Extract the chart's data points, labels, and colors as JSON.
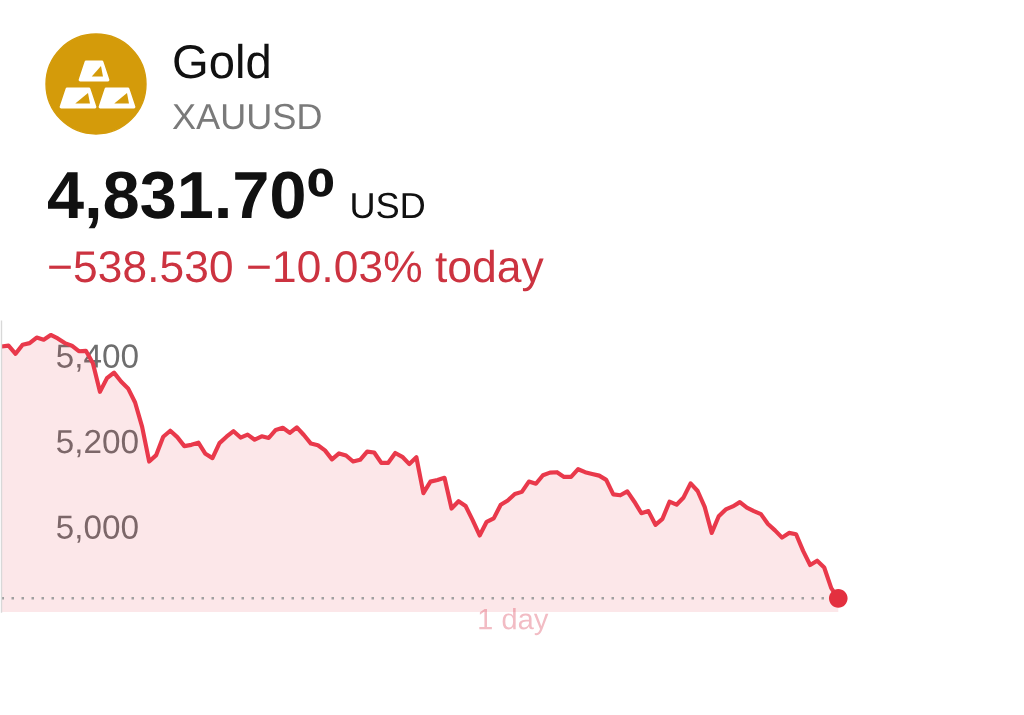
{
  "chart_data": {
    "type": "area",
    "title": "Gold",
    "subtitle": "XAUUSD",
    "xlabel": "1 day",
    "annotations": [
      "4,831.70⁰",
      "USD",
      "−538.530 −10.03% today"
    ],
    "categories": [
      null,
      null,
      null,
      null,
      null,
      null,
      null,
      null,
      null,
      null,
      null,
      null,
      null,
      null,
      null,
      null,
      null,
      null,
      null,
      null,
      null,
      null,
      null,
      null,
      null,
      null,
      null,
      null,
      null,
      null,
      null,
      null,
      null,
      null,
      null,
      null,
      null,
      null,
      null,
      null,
      null,
      null,
      null,
      null,
      null,
      null,
      null,
      null,
      null,
      null,
      null,
      null,
      null,
      null,
      null,
      null,
      null,
      null,
      null,
      null,
      null,
      null,
      null,
      null,
      null,
      null,
      null,
      null,
      null,
      null,
      null,
      null,
      null,
      null,
      null,
      null,
      null,
      null,
      null,
      null,
      null,
      null,
      null,
      null,
      null,
      null,
      null,
      null,
      null,
      null,
      null,
      null,
      null,
      null,
      null,
      null,
      null,
      null,
      null,
      null,
      null,
      null,
      null,
      null,
      null,
      null,
      null,
      null,
      null,
      null,
      null,
      null,
      null,
      null,
      null,
      null,
      null,
      null,
      null,
      null
    ],
    "series": [
      {
        "color": "#e9394b",
        "values": [
          5421,
          5423,
          5404,
          5425,
          5429,
          5442,
          5437,
          5448,
          5440,
          5429,
          5423,
          5410,
          5411,
          5382,
          5315,
          5347,
          5360,
          5339,
          5323,
          5290,
          5233,
          5152,
          5167,
          5210,
          5224,
          5209,
          5188,
          5191,
          5196,
          5170,
          5160,
          5195,
          5210,
          5223,
          5208,
          5215,
          5203,
          5211,
          5207,
          5226,
          5231,
          5219,
          5232,
          5214,
          5194,
          5190,
          5178,
          5157,
          5171,
          5166,
          5152,
          5156,
          5175,
          5173,
          5149,
          5149,
          5172,
          5163,
          5146,
          5162,
          5078,
          5105,
          5109,
          5114,
          5042,
          5059,
          5048,
          5015,
          4979,
          5011,
          5019,
          5051,
          5061,
          5076,
          5081,
          5105,
          5100,
          5120,
          5126,
          5127,
          5116,
          5116,
          5134,
          5127,
          5123,
          5119,
          5109,
          5075,
          5073,
          5082,
          5058,
          5031,
          5036,
          5004,
          5018,
          5058,
          5051,
          5068,
          5101,
          5083,
          5046,
          4985,
          5024,
          5040,
          5047,
          5057,
          5044,
          5036,
          5029,
          5006,
          4991,
          4974,
          4985,
          4982,
          4943,
          4910,
          4920,
          4904,
          4856,
          4832
        ]
      },
      {
        "type": "scatter",
        "color": "#e3303f",
        "marker": "circle",
        "values": [
          null,
          null,
          null,
          null,
          null,
          null,
          null,
          null,
          null,
          null,
          null,
          null,
          null,
          null,
          null,
          null,
          null,
          null,
          null,
          null,
          null,
          null,
          null,
          null,
          null,
          null,
          null,
          null,
          null,
          null,
          null,
          null,
          null,
          null,
          null,
          null,
          null,
          null,
          null,
          null,
          null,
          null,
          null,
          null,
          null,
          null,
          null,
          null,
          null,
          null,
          null,
          null,
          null,
          null,
          null,
          null,
          null,
          null,
          null,
          null,
          null,
          null,
          null,
          null,
          null,
          null,
          null,
          null,
          null,
          null,
          null,
          null,
          null,
          null,
          null,
          null,
          null,
          null,
          null,
          null,
          null,
          null,
          null,
          null,
          null,
          null,
          null,
          null,
          null,
          null,
          null,
          null,
          null,
          null,
          null,
          null,
          null,
          null,
          null,
          null,
          null,
          null,
          null,
          null,
          null,
          null,
          null,
          null,
          null,
          null,
          null,
          null,
          null,
          null,
          null,
          null,
          null,
          null,
          null,
          4832
        ]
      }
    ],
    "ylim": [
      4800,
      5480
    ],
    "yticks": [
      {
        "value": 5000,
        "label": "5,000"
      },
      {
        "value": 5200,
        "label": "5,200"
      },
      {
        "value": 5400,
        "label": "5,400"
      }
    ],
    "tick_labels": "y",
    "ref_lines": [
      {
        "axis": "y",
        "value": 4832,
        "line_style": "dotted",
        "color": "#a0a0a0"
      }
    ]
  }
}
